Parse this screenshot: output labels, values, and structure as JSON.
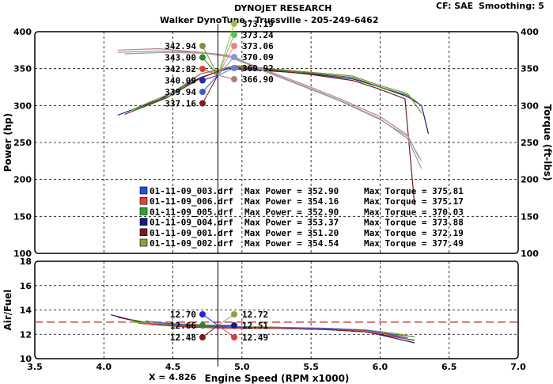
{
  "header": {
    "title": "DYNOJET RESEARCH",
    "shop": "Walker DynoTune - Trussville - 205-249-6462",
    "cf": "CF: SAE",
    "smoothing": "Smoothing: 5"
  },
  "cursor": {
    "readout": "X = 4.826"
  },
  "chart_data": [
    {
      "type": "line",
      "name": "power-torque",
      "ylabel": "Power (hp)",
      "ylabel_right": "Torque (ft-lbs)",
      "xlim": [
        3.5,
        7.0
      ],
      "ylim": [
        100,
        400
      ],
      "xticks": [
        "3.5",
        "4.0",
        "4.5",
        "5.0",
        "5.5",
        "6.0",
        "6.5",
        "7.0"
      ],
      "yticks": [
        "100",
        "150",
        "200",
        "250",
        "300",
        "350",
        "400"
      ],
      "y2ticks": [
        "100",
        "150",
        "200",
        "250",
        "300",
        "350",
        "400"
      ],
      "cursor_x": 4.826,
      "power_markers": [
        {
          "label": "342.94",
          "color": "#8a8a3a"
        },
        {
          "label": "343.00",
          "color": "#2a8a2a"
        },
        {
          "label": "342.82",
          "color": "#e03a3a"
        },
        {
          "label": "340.09",
          "color": "#2a2aa0"
        },
        {
          "label": "339.94",
          "color": "#3a5ad0"
        },
        {
          "label": "337.16",
          "color": "#7a1a1a"
        }
      ],
      "torque_markers": [
        {
          "label": "373.19",
          "color": "#9ac040"
        },
        {
          "label": "373.24",
          "color": "#60c060"
        },
        {
          "label": "373.06",
          "color": "#f08080"
        },
        {
          "label": "370.09",
          "color": "#9090e0"
        },
        {
          "label": "369.92",
          "color": "#6a7ae0"
        },
        {
          "label": "366.90",
          "color": "#b07a7a"
        }
      ],
      "legend": [
        {
          "file": "01-11-09_003.drf",
          "max_power": "Max Power = 352.90",
          "max_torque": "Max Torque = 375.81",
          "color": "#2a4ae0"
        },
        {
          "file": "01-11-09_006.drf",
          "max_power": "Max Power = 354.16",
          "max_torque": "Max Torque = 375.17",
          "color": "#e04040"
        },
        {
          "file": "01-11-09_005.drf",
          "max_power": "Max Power = 352.90",
          "max_torque": "Max Torque = 370.03",
          "color": "#30a030"
        },
        {
          "file": "01-11-09_004.drf",
          "max_power": "Max Power = 353.37",
          "max_torque": "Max Torque = 373.88",
          "color": "#1a1a80"
        },
        {
          "file": "01-11-09_001.drf",
          "max_power": "Max Power = 351.20",
          "max_torque": "Max Torque = 372.19",
          "color": "#7a1a1a"
        },
        {
          "file": "01-11-09_002.drf",
          "max_power": "Max Power = 354.54",
          "max_torque": "Max Torque = 377.49",
          "color": "#9a9a40"
        }
      ],
      "series": [
        {
          "kind": "power",
          "color": "#1a1a80",
          "x": [
            4.1,
            4.4,
            4.7,
            4.9,
            5.2,
            5.5,
            5.8,
            6.0,
            6.2,
            6.3,
            6.35
          ],
          "y": [
            287,
            308,
            338,
            350,
            347,
            343,
            336,
            325,
            312,
            300,
            262
          ]
        },
        {
          "kind": "power",
          "color": "#7a1a1a",
          "x": [
            4.15,
            4.45,
            4.7,
            4.9,
            5.2,
            5.5,
            5.8,
            6.0,
            6.18,
            6.25
          ],
          "y": [
            288,
            310,
            337,
            352,
            348,
            342,
            334,
            322,
            309,
            165
          ]
        },
        {
          "kind": "power",
          "color": "#2a8a2a",
          "x": [
            4.2,
            4.5,
            4.7,
            4.95,
            5.2,
            5.5,
            5.8,
            6.0,
            6.2,
            6.3
          ],
          "y": [
            292,
            315,
            343,
            353,
            349,
            344,
            338,
            325,
            314,
            300
          ]
        },
        {
          "kind": "power",
          "color": "#8a8a3a",
          "x": [
            4.2,
            4.5,
            4.7,
            4.95,
            5.2,
            5.5,
            5.8,
            6.0,
            6.2,
            6.3
          ],
          "y": [
            294,
            318,
            343,
            354,
            350,
            345,
            340,
            327,
            316,
            290
          ]
        },
        {
          "kind": "torque",
          "color": "#9090c0",
          "x": [
            4.1,
            4.4,
            4.7,
            4.9,
            5.1,
            5.4,
            5.7,
            6.0,
            6.2,
            6.3
          ],
          "y": [
            372,
            374,
            372,
            366,
            352,
            330,
            308,
            282,
            255,
            215
          ]
        },
        {
          "kind": "torque",
          "color": "#c08080",
          "x": [
            4.1,
            4.4,
            4.7,
            4.9,
            5.1,
            5.4,
            5.7,
            6.0,
            6.2,
            6.28
          ],
          "y": [
            375,
            377,
            372,
            368,
            353,
            332,
            310,
            285,
            260,
            230
          ]
        },
        {
          "kind": "torque",
          "color": "#a0a0a0",
          "x": [
            4.15,
            4.45,
            4.7,
            4.95,
            5.1,
            5.4,
            5.7,
            6.0,
            6.2,
            6.3
          ],
          "y": [
            370,
            372,
            371,
            366,
            351,
            329,
            307,
            281,
            258,
            225
          ]
        }
      ]
    },
    {
      "type": "line",
      "name": "air-fuel",
      "ylabel": "Air/Fuel",
      "xlabel": "Engine Speed (RPM x1000)",
      "xlim": [
        3.5,
        7.0
      ],
      "ylim": [
        10,
        18
      ],
      "xticks": [
        "3.5",
        "4.0",
        "4.5",
        "5.0",
        "5.5",
        "6.0",
        "6.5",
        "7.0"
      ],
      "yticks": [
        "10",
        "12",
        "14",
        "16",
        "18"
      ],
      "target_line": 13.0,
      "af_markers_left": [
        {
          "label": "12.70",
          "color": "#1a2ae0"
        },
        {
          "label": "12.66",
          "color": "#2a8a2a"
        },
        {
          "label": "12.48",
          "color": "#7a1a1a"
        }
      ],
      "af_markers_right": [
        {
          "label": "12.72",
          "color": "#9a9a40"
        },
        {
          "label": "12.51",
          "color": "#1a1a80"
        },
        {
          "label": "12.49",
          "color": "#e03a3a"
        }
      ],
      "series": [
        {
          "color": "#1a1a80",
          "x": [
            4.05,
            4.3,
            4.6,
            4.9,
            5.2,
            5.6,
            5.9,
            6.1,
            6.25
          ],
          "y": [
            13.6,
            12.9,
            12.7,
            12.55,
            12.5,
            12.4,
            12.2,
            11.7,
            11.3
          ]
        },
        {
          "color": "#7a1a1a",
          "x": [
            4.1,
            4.35,
            4.6,
            4.9,
            5.2,
            5.6,
            5.9,
            6.1,
            6.25
          ],
          "y": [
            13.4,
            12.8,
            12.6,
            12.5,
            12.5,
            12.4,
            12.2,
            11.8,
            11.5
          ]
        },
        {
          "color": "#2a8a2a",
          "x": [
            4.2,
            4.4,
            4.7,
            4.95,
            5.2,
            5.6,
            5.9,
            6.1,
            6.25
          ],
          "y": [
            13.2,
            12.8,
            12.7,
            12.6,
            12.55,
            12.45,
            12.3,
            12.0,
            11.8
          ]
        },
        {
          "color": "#9a9a40",
          "x": [
            4.2,
            4.4,
            4.7,
            4.95,
            5.2,
            5.6,
            5.9,
            6.1,
            6.2
          ],
          "y": [
            13.0,
            12.9,
            12.8,
            12.65,
            12.6,
            12.5,
            12.35,
            12.1,
            11.9
          ]
        },
        {
          "color": "#e04040",
          "x": [
            4.25,
            4.45,
            4.7,
            4.95,
            5.2,
            5.6,
            5.9,
            6.05,
            6.2
          ],
          "y": [
            12.9,
            12.75,
            12.6,
            12.5,
            12.5,
            12.45,
            12.3,
            12.0,
            11.6
          ]
        },
        {
          "color": "#3a5ad0",
          "x": [
            4.3,
            4.5,
            4.75,
            5.0,
            5.2,
            5.6,
            5.9,
            6.05,
            6.2
          ],
          "y": [
            13.1,
            12.85,
            12.7,
            12.6,
            12.55,
            12.5,
            12.35,
            12.05,
            11.7
          ]
        }
      ]
    }
  ]
}
